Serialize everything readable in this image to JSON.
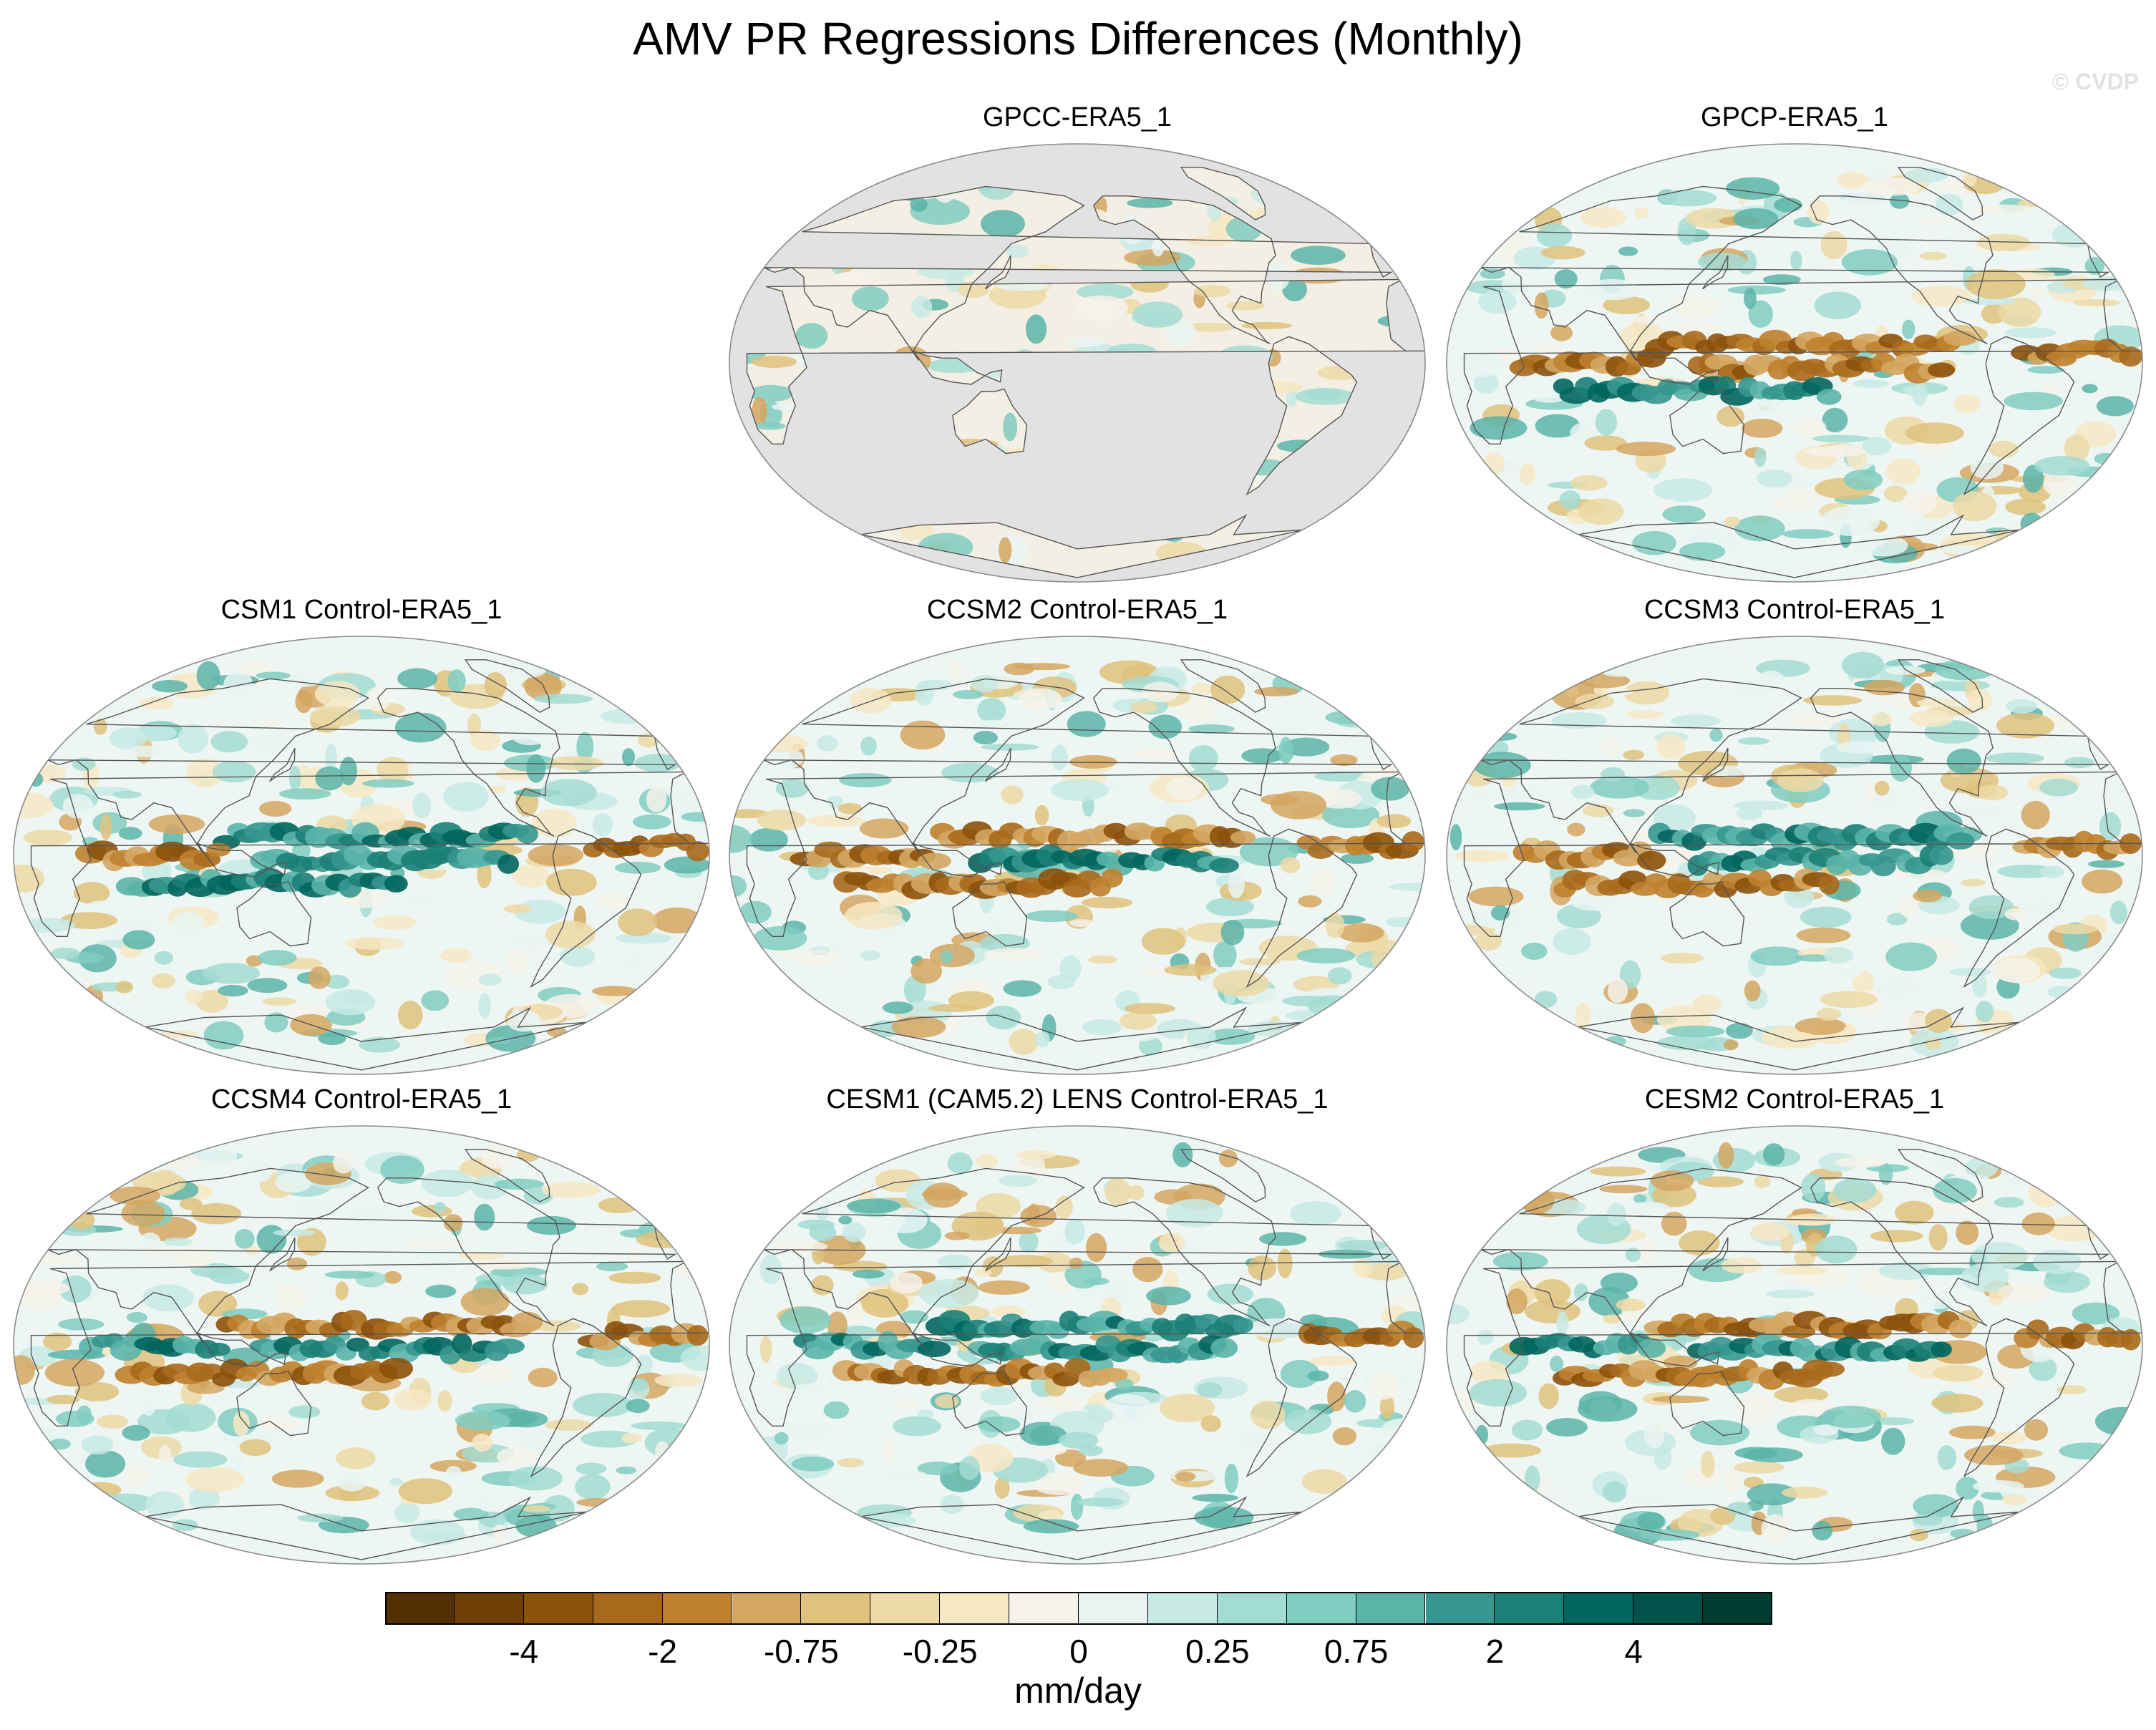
{
  "figure": {
    "title": "AMV PR Regressions Differences (Monthly)",
    "watermark": "© CVDP",
    "units": "mm/day",
    "projection": "Robinson-like global, centered on Pacific"
  },
  "panels": [
    {
      "id": "gpcc",
      "title": "GPCC-ERA5_1",
      "land_only": true
    },
    {
      "id": "gpcp",
      "title": "GPCP-ERA5_1"
    },
    {
      "id": "csm1",
      "title": "CSM1 Control-ERA5_1"
    },
    {
      "id": "ccsm2",
      "title": "CCSM2 Control-ERA5_1"
    },
    {
      "id": "ccsm3",
      "title": "CCSM3 Control-ERA5_1"
    },
    {
      "id": "ccsm4",
      "title": "CCSM4 Control-ERA5_1"
    },
    {
      "id": "cesm1",
      "title": "CESM1 (CAM5.2) LENS Control-ERA5_1"
    },
    {
      "id": "cesm2",
      "title": "CESM2 Control-ERA5_1"
    }
  ],
  "colorbar": {
    "colors": [
      "#543005",
      "#6f3f08",
      "#8c510a",
      "#a8691b",
      "#bf812d",
      "#d4a660",
      "#dfc27d",
      "#ecd9a6",
      "#f6e8c3",
      "#f5f2ea",
      "#e8f4f2",
      "#c7eae5",
      "#a3dcd2",
      "#80cdc1",
      "#5ab4a8",
      "#35978f",
      "#1b8075",
      "#01665e",
      "#00524a",
      "#003c30"
    ],
    "labels": [
      {
        "text": "-4",
        "boundary": 2
      },
      {
        "text": "-2",
        "boundary": 4
      },
      {
        "text": "-0.75",
        "boundary": 6
      },
      {
        "text": "-0.25",
        "boundary": 8
      },
      {
        "text": "0",
        "boundary": 10
      },
      {
        "text": "0.25",
        "boundary": 12
      },
      {
        "text": "0.75",
        "boundary": 14
      },
      {
        "text": "2",
        "boundary": 16
      },
      {
        "text": "4",
        "boundary": 18
      }
    ]
  },
  "colors": {
    "land_mask": "#e2e2e2",
    "coastline": "#555555",
    "dry": "#bf812d",
    "wet": "#35978f"
  }
}
